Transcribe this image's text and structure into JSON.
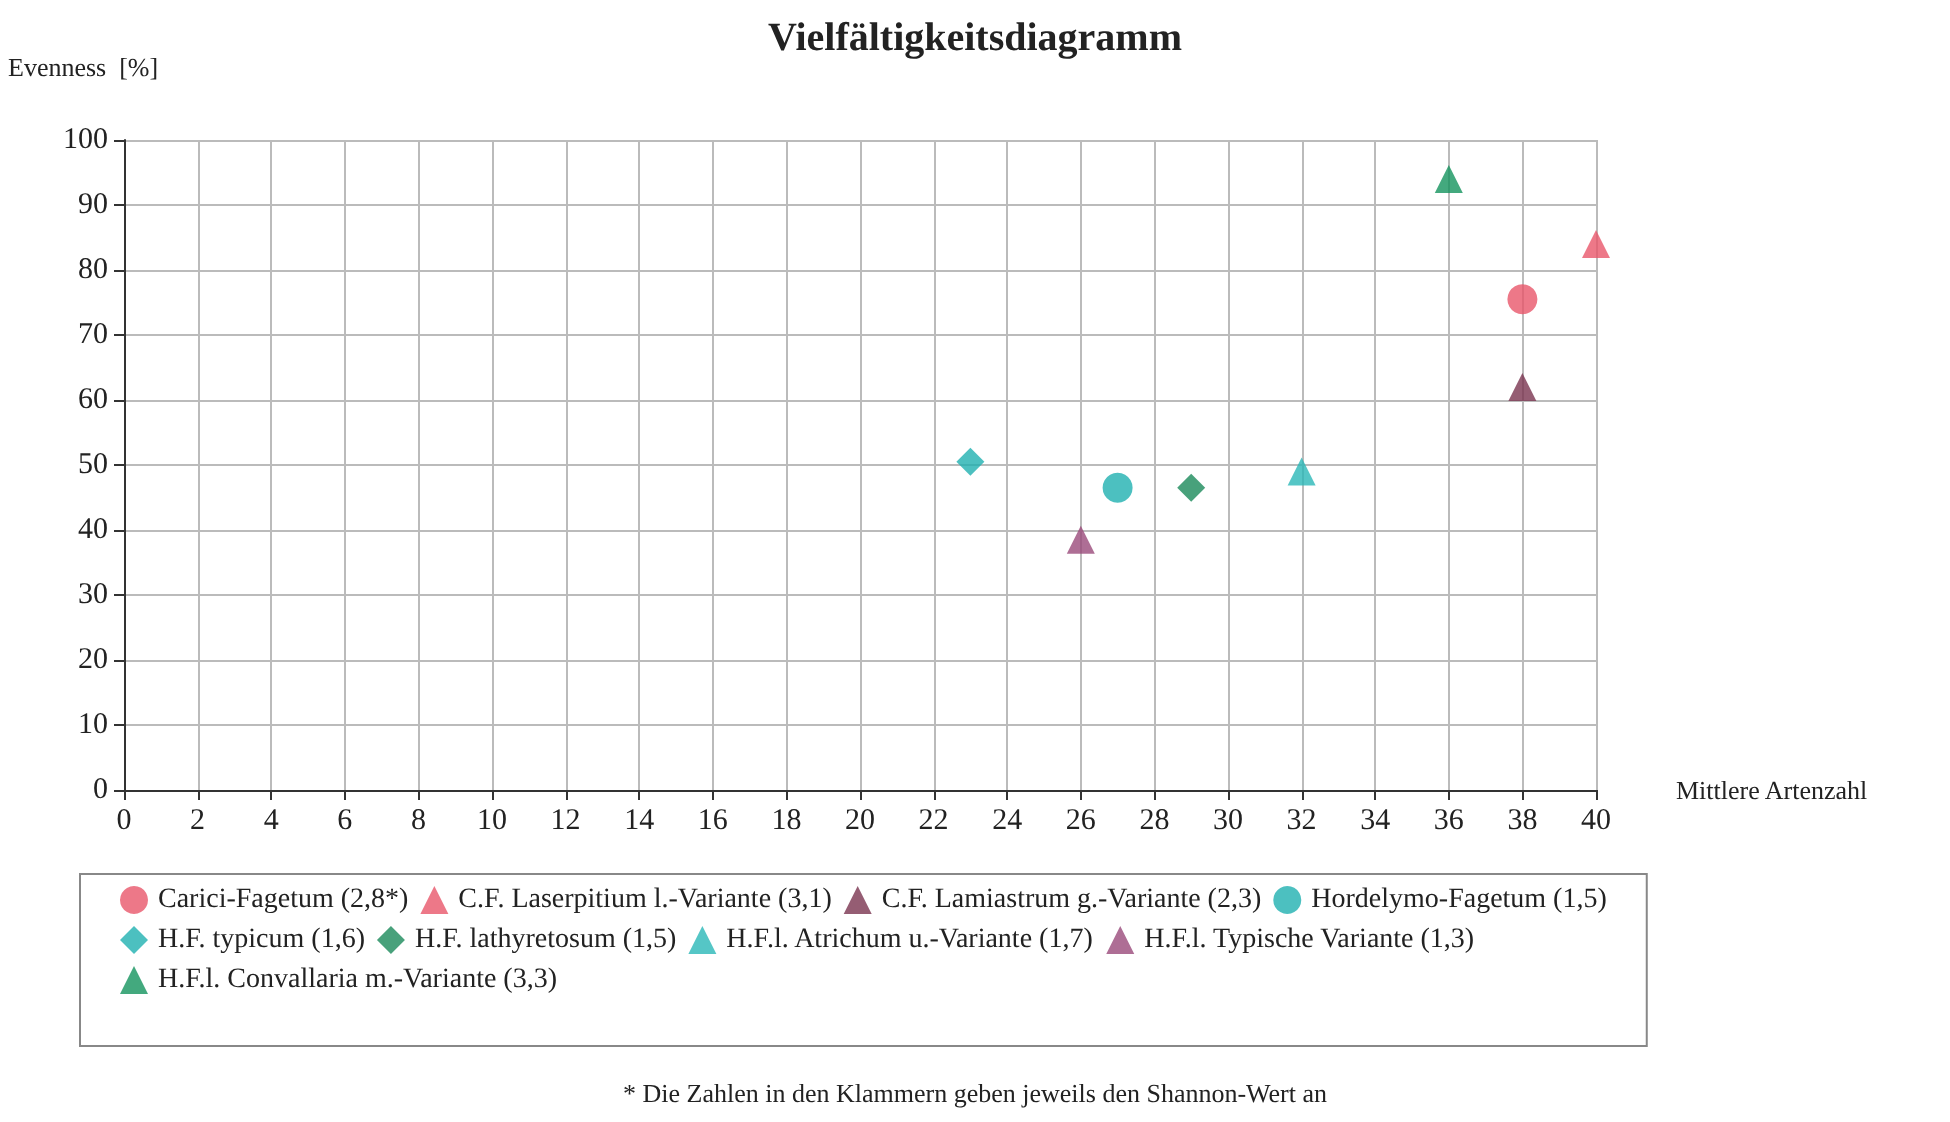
{
  "chart_data": {
    "type": "scatter",
    "title": "Vielfältigkeitsdiagramm",
    "xlabel": "Mittlere Artenzahl",
    "ylabel": "Evenness  [%]",
    "xlim": [
      0,
      40
    ],
    "xticks": [
      0,
      2,
      4,
      6,
      8,
      10,
      12,
      14,
      16,
      18,
      20,
      22,
      24,
      26,
      28,
      30,
      32,
      34,
      36,
      38,
      40
    ],
    "ylim": [
      0,
      100
    ],
    "yticks": [
      0,
      10,
      20,
      30,
      40,
      50,
      60,
      70,
      80,
      90,
      100
    ],
    "grid": true,
    "legend": "bottom",
    "series": [
      {
        "name": "Carici-Fagetum (2,8*)",
        "color": "#e8566a",
        "marker": "circle",
        "x": [
          38
        ],
        "values": [
          75.5
        ]
      },
      {
        "name": "C.F. Laserpitium l.-Variante (3,1)",
        "color": "#e8566a",
        "marker": "triangle",
        "x": [
          40
        ],
        "values": [
          84
        ]
      },
      {
        "name": "C.F. Lamiastrum g.-Variante (2,3)",
        "color": "#7a3550",
        "marker": "triangle",
        "x": [
          38
        ],
        "values": [
          62
        ]
      },
      {
        "name": "Hordelymo-Fagetum (1,5)",
        "color": "#1fb0b0",
        "marker": "circle",
        "x": [
          27
        ],
        "values": [
          46.5
        ]
      },
      {
        "name": "H.F. typicum (1,6)",
        "color": "#1fb0b0",
        "marker": "diamond",
        "x": [
          23
        ],
        "values": [
          50.5
        ]
      },
      {
        "name": "H.F. lathyretosum (1,5)",
        "color": "#1a8a5a",
        "marker": "diamond",
        "x": [
          29
        ],
        "values": [
          46.5
        ]
      },
      {
        "name": "H.F.l. Atrichum u.-Variante (1,7)",
        "color": "#2ab8b8",
        "marker": "triangle",
        "x": [
          32
        ],
        "values": [
          49
        ]
      },
      {
        "name": "H.F.l. Typische Variante (1,3)",
        "color": "#9a4a7a",
        "marker": "triangle",
        "x": [
          26
        ],
        "values": [
          38.5
        ]
      },
      {
        "name": "H.F.l. Convallaria m.-Variante (3,3)",
        "color": "#14935e",
        "marker": "triangle",
        "x": [
          36
        ],
        "values": [
          94
        ]
      }
    ],
    "annotations": [
      "* Die Zahlen in den Klammern geben jeweils den Shannon-Wert an"
    ]
  }
}
